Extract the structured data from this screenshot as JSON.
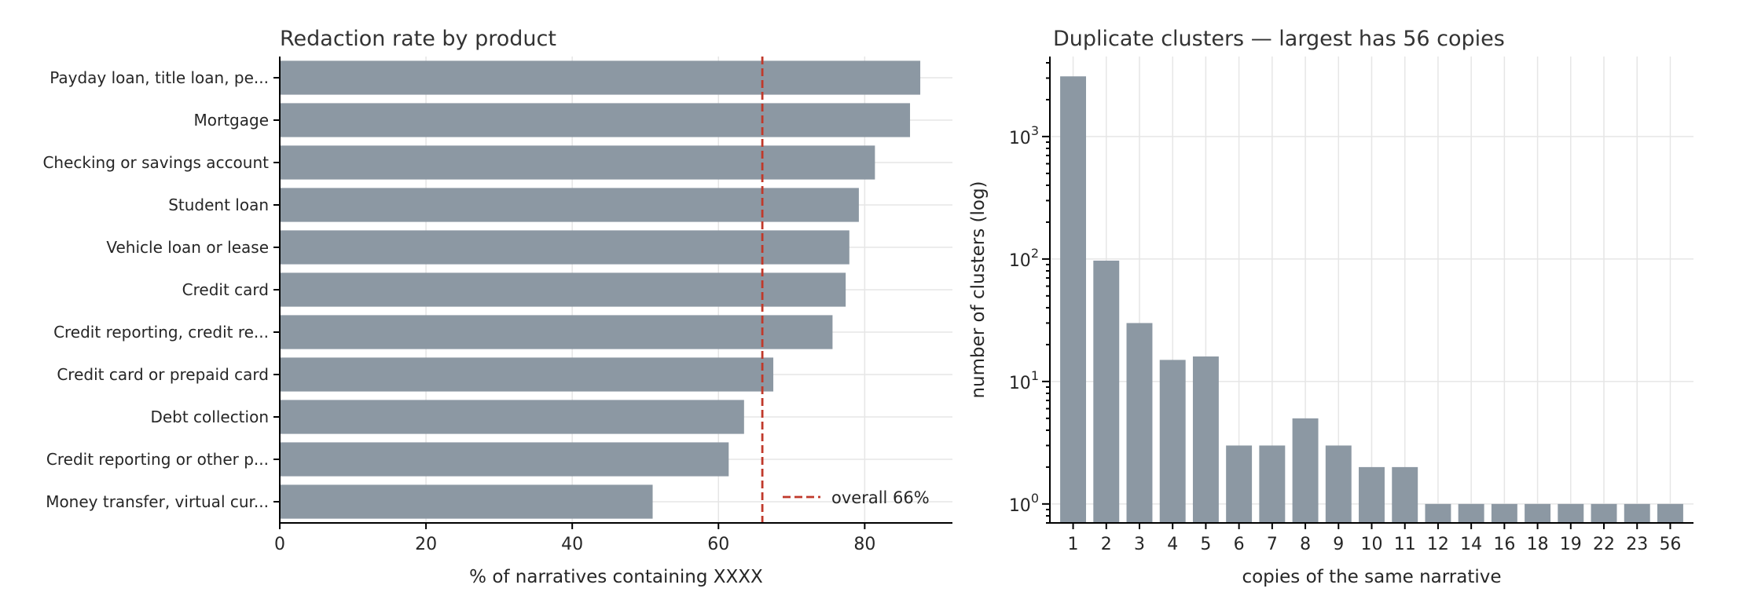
{
  "colors": {
    "bar": "#8c98a3",
    "reference_line": "#c0392b",
    "grid": "#e6e6e6"
  },
  "chart_data": [
    {
      "type": "bar",
      "orientation": "horizontal",
      "title": "Redaction rate by product",
      "xlabel": "% of narratives containing XXXX",
      "ylabel": "",
      "xlim": [
        0,
        92
      ],
      "xticks": [
        0,
        20,
        40,
        60,
        80
      ],
      "grid": true,
      "categories": [
        "Payday loan, title loan, pe...",
        "Mortgage",
        "Checking or savings account",
        "Student loan",
        "Vehicle loan or lease",
        "Credit card",
        "Credit reporting, credit re...",
        "Credit card or prepaid card",
        "Debt collection",
        "Credit reporting or other p...",
        "Money transfer, virtual cur..."
      ],
      "values": [
        87.6,
        86.2,
        81.4,
        79.2,
        77.9,
        77.4,
        75.6,
        67.5,
        63.5,
        61.4,
        51.0
      ],
      "reference_line": {
        "value": 66,
        "label": "overall 66%",
        "style": "dashed"
      },
      "legend": {
        "position": "bottom-right",
        "entries": [
          "overall 66%"
        ]
      }
    },
    {
      "type": "bar",
      "title": "Duplicate clusters — largest has 56 copies",
      "xlabel": "copies of the same narrative",
      "ylabel": "number of clusters (log)",
      "yscale": "log",
      "ylim": [
        0.7,
        4500
      ],
      "yticks": [
        1,
        10,
        100,
        1000
      ],
      "yticklabels": [
        [
          "10",
          "0"
        ],
        [
          "10",
          "1"
        ],
        [
          "10",
          "2"
        ],
        [
          "10",
          "3"
        ]
      ],
      "grid": true,
      "categories": [
        "1",
        "2",
        "3",
        "4",
        "5",
        "6",
        "7",
        "8",
        "9",
        "10",
        "11",
        "12",
        "14",
        "16",
        "18",
        "19",
        "22",
        "23",
        "56"
      ],
      "values": [
        3100,
        97,
        30,
        15,
        16,
        3,
        3,
        5,
        3,
        2,
        2,
        1,
        1,
        1,
        1,
        1,
        1,
        1,
        1
      ]
    }
  ]
}
